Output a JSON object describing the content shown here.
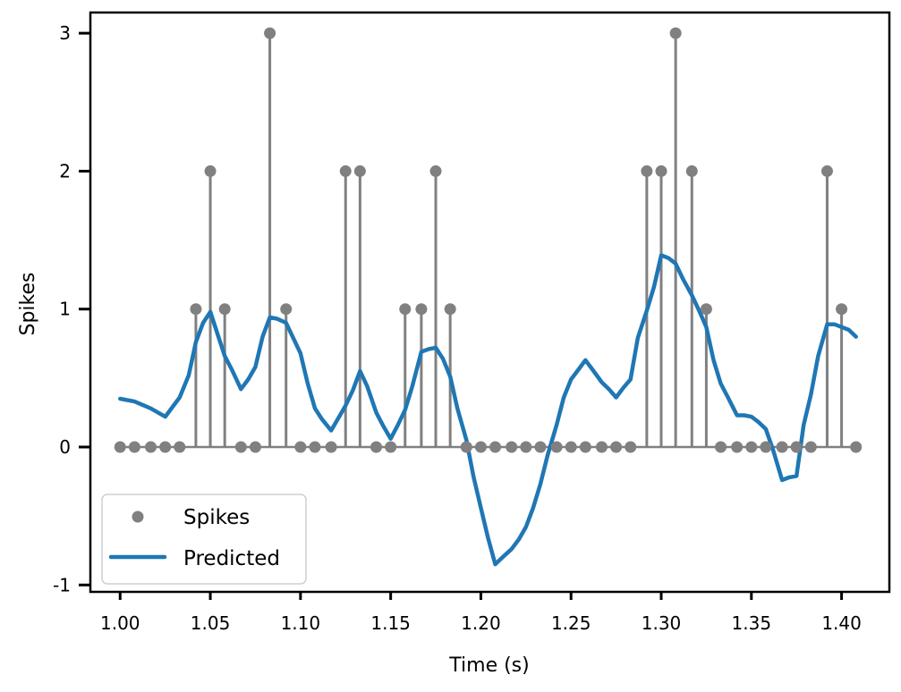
{
  "chart_data": {
    "type": "line",
    "title": "",
    "xlabel": "Time (s)",
    "ylabel": "Spikes",
    "xlim": [
      0.9835,
      1.4265
    ],
    "ylim": [
      -1.05,
      3.15
    ],
    "xticks": [
      1.0,
      1.05,
      1.1,
      1.15,
      1.2,
      1.25,
      1.3,
      1.35,
      1.4
    ],
    "xtick_labels": [
      "1.00",
      "1.05",
      "1.10",
      "1.15",
      "1.20",
      "1.25",
      "1.30",
      "1.35",
      "1.40"
    ],
    "yticks": [
      -1,
      0,
      1,
      2,
      3
    ],
    "ytick_labels": [
      "-1",
      "0",
      "1",
      "2",
      "3"
    ],
    "grid": false,
    "legend_position": "lower-left",
    "series": [
      {
        "name": "Spikes",
        "kind": "stem",
        "color": "#808080",
        "x": [
          1.0,
          1.008,
          1.017,
          1.025,
          1.033,
          1.042,
          1.05,
          1.058,
          1.067,
          1.075,
          1.083,
          1.092,
          1.1,
          1.108,
          1.117,
          1.125,
          1.133,
          1.142,
          1.15,
          1.158,
          1.167,
          1.175,
          1.183,
          1.192,
          1.2,
          1.208,
          1.217,
          1.225,
          1.233,
          1.242,
          1.25,
          1.258,
          1.267,
          1.275,
          1.283,
          1.292,
          1.3,
          1.308,
          1.317,
          1.325,
          1.333,
          1.342,
          1.35,
          1.358,
          1.367,
          1.375,
          1.383,
          1.392,
          1.4,
          1.408
        ],
        "y": [
          0,
          0,
          0,
          0,
          0,
          1,
          2,
          1,
          0,
          0,
          3,
          1,
          0,
          0,
          0,
          2,
          2,
          0,
          0,
          1,
          1,
          2,
          1,
          0,
          0,
          0,
          0,
          0,
          0,
          0,
          0,
          0,
          0,
          0,
          0,
          2,
          2,
          3,
          2,
          1,
          0,
          0,
          0,
          0,
          0,
          0,
          0,
          2,
          1,
          0
        ]
      },
      {
        "name": "Predicted",
        "kind": "line",
        "color": "#1f77b4",
        "x": [
          1.0,
          1.008,
          1.017,
          1.025,
          1.033,
          1.038,
          1.042,
          1.046,
          1.05,
          1.054,
          1.058,
          1.062,
          1.067,
          1.071,
          1.075,
          1.079,
          1.083,
          1.087,
          1.092,
          1.096,
          1.1,
          1.104,
          1.108,
          1.112,
          1.117,
          1.121,
          1.125,
          1.129,
          1.133,
          1.137,
          1.142,
          1.146,
          1.15,
          1.154,
          1.158,
          1.162,
          1.167,
          1.171,
          1.175,
          1.179,
          1.183,
          1.187,
          1.192,
          1.196,
          1.2,
          1.204,
          1.208,
          1.212,
          1.217,
          1.221,
          1.225,
          1.229,
          1.233,
          1.237,
          1.242,
          1.246,
          1.25,
          1.254,
          1.258,
          1.262,
          1.267,
          1.271,
          1.275,
          1.279,
          1.283,
          1.287,
          1.292,
          1.296,
          1.3,
          1.304,
          1.308,
          1.312,
          1.317,
          1.321,
          1.325,
          1.329,
          1.333,
          1.337,
          1.342,
          1.346,
          1.35,
          1.354,
          1.358,
          1.362,
          1.367,
          1.371,
          1.375,
          1.379,
          1.383,
          1.387,
          1.392,
          1.396,
          1.4,
          1.404,
          1.408
        ],
        "y": [
          0.35,
          0.33,
          0.28,
          0.22,
          0.36,
          0.52,
          0.76,
          0.9,
          0.98,
          0.82,
          0.66,
          0.56,
          0.42,
          0.49,
          0.58,
          0.8,
          0.94,
          0.93,
          0.9,
          0.79,
          0.68,
          0.46,
          0.28,
          0.2,
          0.12,
          0.21,
          0.3,
          0.41,
          0.55,
          0.44,
          0.25,
          0.15,
          0.06,
          0.16,
          0.27,
          0.44,
          0.69,
          0.71,
          0.72,
          0.64,
          0.51,
          0.28,
          0.05,
          -0.22,
          -0.44,
          -0.66,
          -0.85,
          -0.8,
          -0.74,
          -0.67,
          -0.58,
          -0.44,
          -0.27,
          -0.06,
          0.16,
          0.36,
          0.49,
          0.56,
          0.63,
          0.56,
          0.47,
          0.42,
          0.36,
          0.43,
          0.49,
          0.79,
          0.99,
          1.16,
          1.39,
          1.37,
          1.33,
          1.22,
          1.1,
          0.99,
          0.87,
          0.63,
          0.46,
          0.36,
          0.23,
          0.23,
          0.22,
          0.18,
          0.13,
          -0.02,
          -0.24,
          -0.22,
          -0.21,
          0.16,
          0.38,
          0.66,
          0.89,
          0.89,
          0.87,
          0.85,
          0.8
        ]
      }
    ]
  }
}
